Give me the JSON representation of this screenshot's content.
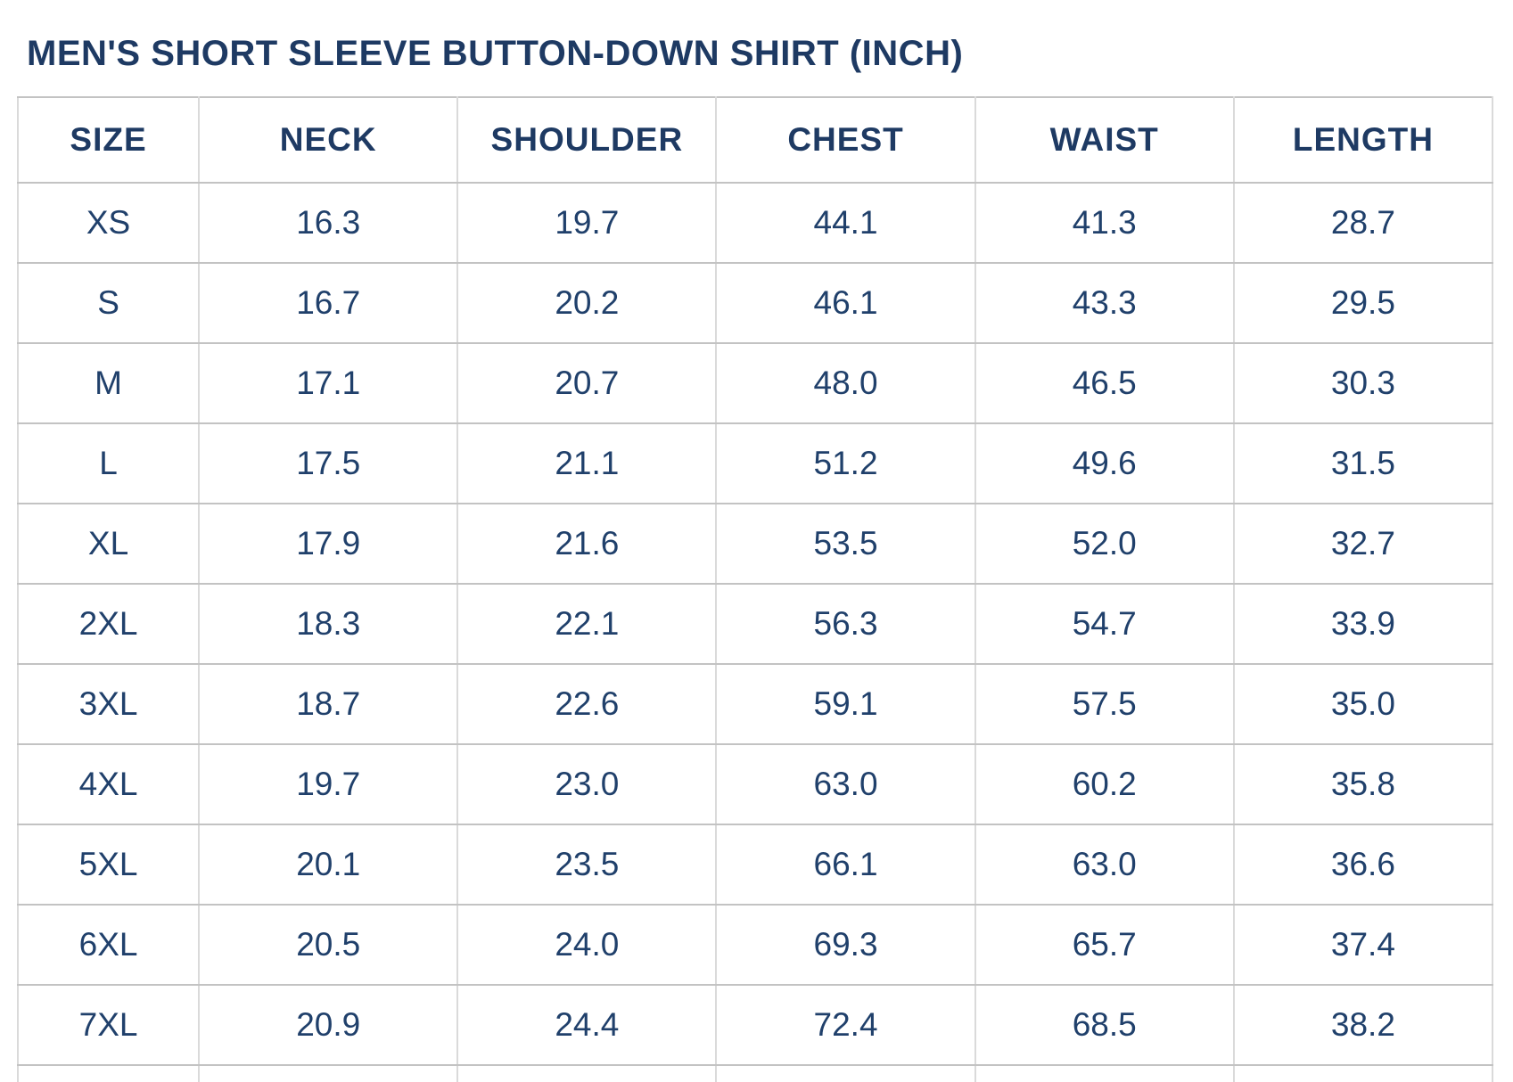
{
  "page": {
    "title": "MEN'S SHORT SLEEVE BUTTON-DOWN SHIRT (INCH)"
  },
  "colors": {
    "text_navy": "#1e3a63",
    "cell_text_navy": "#20406b",
    "horizontal_border_gray": "#c3c3c3",
    "vertical_border_gray": "#dadada",
    "background": "#ffffff"
  },
  "chart_data": {
    "type": "table",
    "title": "MEN'S SHORT SLEEVE BUTTON-DOWN SHIRT (INCH)",
    "unit_note": "INCH",
    "columns": [
      "SIZE",
      "NECK",
      "SHOULDER",
      "CHEST",
      "WAIST",
      "LENGTH"
    ],
    "rows": [
      [
        "XS",
        "16.3",
        "19.7",
        "44.1",
        "41.3",
        "28.7"
      ],
      [
        "S",
        "16.7",
        "20.2",
        "46.1",
        "43.3",
        "29.5"
      ],
      [
        "M",
        "17.1",
        "20.7",
        "48.0",
        "46.5",
        "30.3"
      ],
      [
        "L",
        "17.5",
        "21.1",
        "51.2",
        "49.6",
        "31.5"
      ],
      [
        "XL",
        "17.9",
        "21.6",
        "53.5",
        "52.0",
        "32.7"
      ],
      [
        "2XL",
        "18.3",
        "22.1",
        "56.3",
        "54.7",
        "33.9"
      ],
      [
        "3XL",
        "18.7",
        "22.6",
        "59.1",
        "57.5",
        "35.0"
      ],
      [
        "4XL",
        "19.7",
        "23.0",
        "63.0",
        "60.2",
        "35.8"
      ],
      [
        "5XL",
        "20.1",
        "23.5",
        "66.1",
        "63.0",
        "36.6"
      ],
      [
        "6XL",
        "20.5",
        "24.0",
        "69.3",
        "65.7",
        "37.4"
      ],
      [
        "7XL",
        "20.9",
        "24.4",
        "72.4",
        "68.5",
        "38.2"
      ]
    ]
  }
}
